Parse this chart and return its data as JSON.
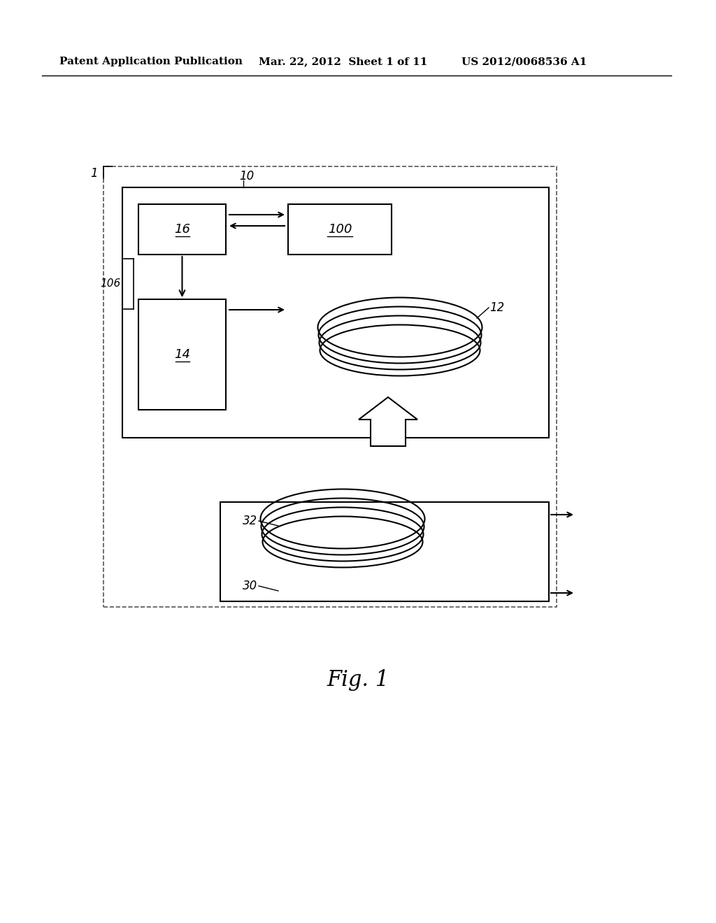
{
  "bg_color": "#ffffff",
  "header_left": "Patent Application Publication",
  "header_mid": "Mar. 22, 2012  Sheet 1 of 11",
  "header_right": "US 2012/0068536 A1",
  "fig_label": "Fig. 1",
  "label_1": "1",
  "label_10": "10",
  "label_106": "106",
  "label_16": "16",
  "label_100": "100",
  "label_14": "14",
  "label_12": "12",
  "label_32": "32",
  "label_30": "30"
}
